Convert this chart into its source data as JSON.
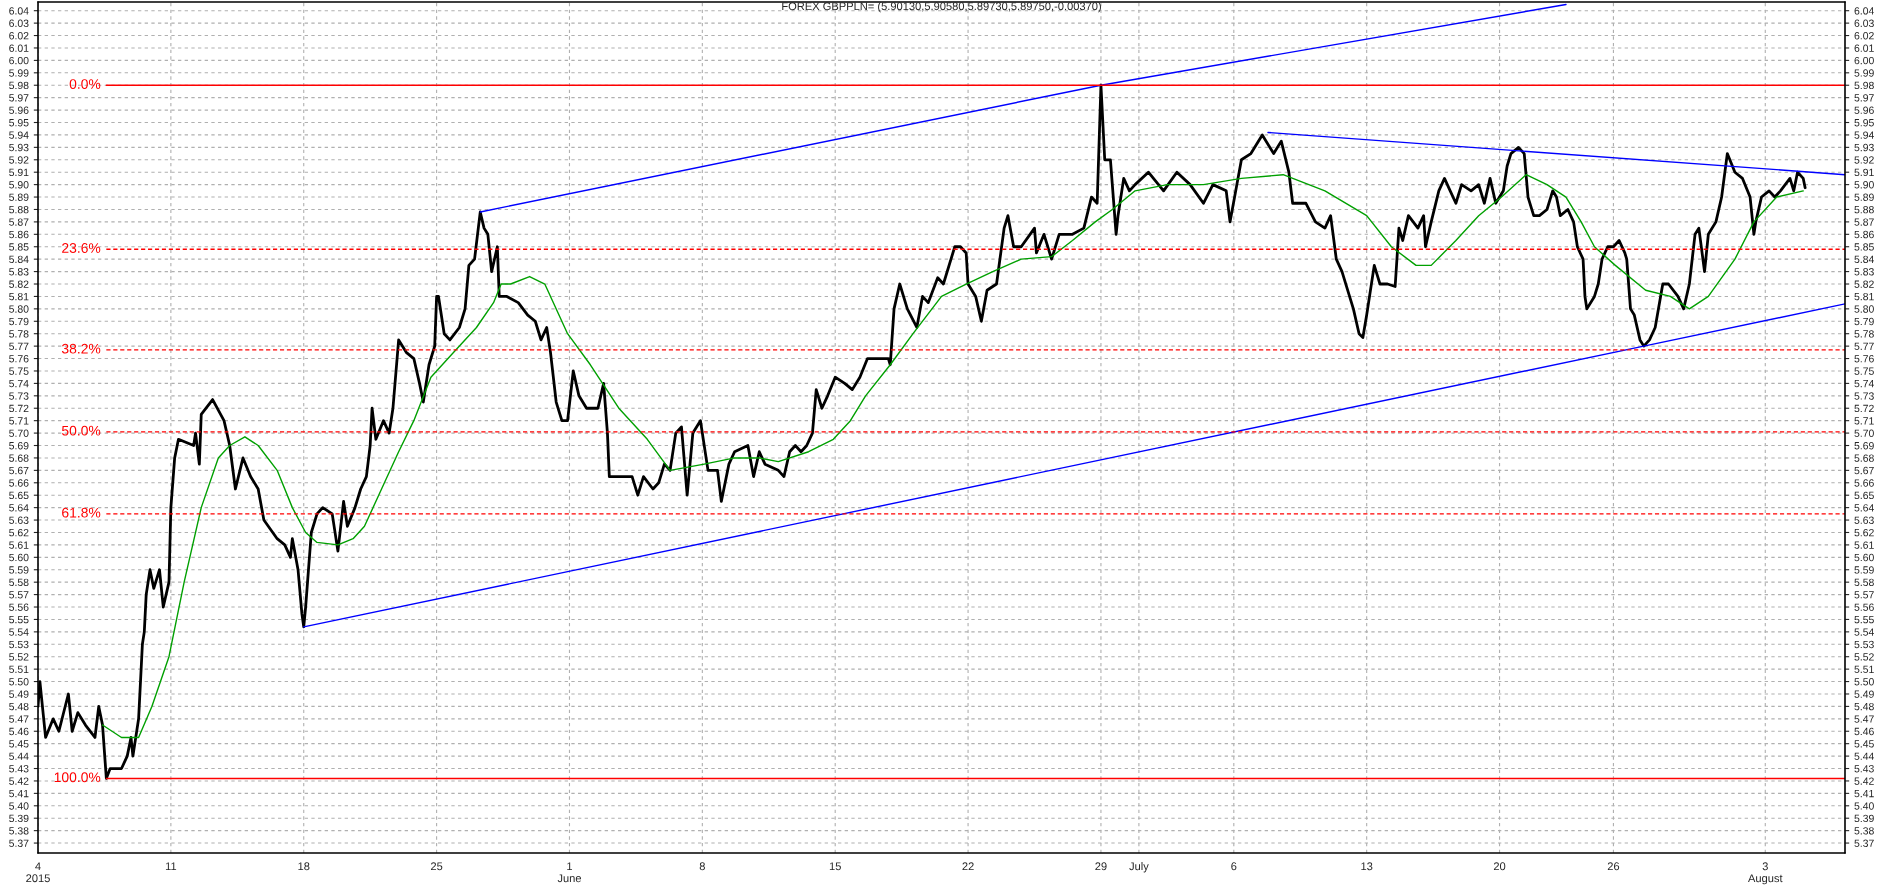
{
  "chart_data": {
    "type": "line",
    "title": "FOREX GBPPLN= (5.90130,5.90580,5.89730,5.89750,-0.00370)",
    "xlim": [
      "2015-05-04T00:00",
      "2015-08-07T04:48"
    ],
    "ylim": [
      5.362,
      6.047
    ],
    "y2lim": [
      5.362,
      6.047
    ],
    "xticks": [
      {
        "value": "2015-05-04",
        "label": "4\n2015"
      },
      {
        "value": "2015-05-11",
        "label": "11"
      },
      {
        "value": "2015-05-18",
        "label": "18"
      },
      {
        "value": "2015-05-25",
        "label": "25"
      },
      {
        "value": "2015-06-01",
        "label": "1\nJune"
      },
      {
        "value": "2015-06-08",
        "label": "8"
      },
      {
        "value": "2015-06-15",
        "label": "15"
      },
      {
        "value": "2015-06-22",
        "label": "22"
      },
      {
        "value": "2015-06-29",
        "label": "29"
      },
      {
        "value": "2015-07-01",
        "label": "July"
      },
      {
        "value": "2015-07-06",
        "label": "6"
      },
      {
        "value": "2015-07-13",
        "label": "13"
      },
      {
        "value": "2015-07-20",
        "label": "20"
      },
      {
        "value": "2015-07-26",
        "label": "26"
      },
      {
        "value": "2015-08-03",
        "label": "3\nAugust"
      }
    ],
    "yticks": [
      5.37,
      5.38,
      5.39,
      {
        "value": 5.4,
        "label": "5.40"
      },
      5.41,
      5.42,
      5.43,
      5.44,
      5.45,
      5.46,
      5.47,
      5.48,
      5.49,
      {
        "value": 5.5,
        "label": "5.50"
      },
      5.51,
      5.52,
      5.53,
      5.54,
      5.55,
      5.56,
      5.57,
      5.58,
      5.59,
      {
        "value": 5.6,
        "label": "5.60"
      },
      5.61,
      5.62,
      5.63,
      5.64,
      5.65,
      5.66,
      5.67,
      5.68,
      5.69,
      {
        "value": 5.7,
        "label": "5.70"
      },
      5.71,
      5.72,
      5.73,
      5.74,
      5.75,
      5.76,
      5.77,
      5.78,
      5.79,
      {
        "value": 5.8,
        "label": "5.80"
      },
      5.81,
      5.82,
      5.83,
      5.84,
      5.85,
      5.86,
      5.87,
      5.88,
      5.89,
      {
        "value": 5.9,
        "label": "5.90"
      },
      5.91,
      5.92,
      5.93,
      5.94,
      5.95,
      5.96,
      5.97,
      5.98,
      5.99,
      {
        "value": 6.0,
        "label": "6.00"
      },
      6.01,
      6.02,
      6.03,
      6.04
    ],
    "y2ticks": [
      5.37,
      5.38,
      5.39,
      {
        "value": 5.4,
        "label": "5.40"
      },
      5.41,
      5.42,
      5.43,
      5.44,
      5.45,
      5.46,
      5.47,
      5.48,
      5.49,
      {
        "value": 5.5,
        "label": "5.50"
      },
      5.51,
      5.52,
      5.53,
      5.54,
      5.55,
      5.56,
      5.57,
      5.58,
      5.59,
      {
        "value": 5.6,
        "label": "5.60"
      },
      5.61,
      5.62,
      5.63,
      5.64,
      5.65,
      5.66,
      5.67,
      5.68,
      5.69,
      {
        "value": 5.7,
        "label": "5.70"
      },
      5.71,
      5.72,
      5.73,
      5.74,
      5.75,
      5.76,
      5.77,
      5.78,
      5.79,
      {
        "value": 5.8,
        "label": "5.80"
      },
      5.81,
      5.82,
      5.83,
      5.84,
      5.85,
      5.86,
      5.87,
      5.88,
      5.89,
      {
        "value": 5.9,
        "label": "5.90"
      },
      5.91,
      5.92,
      5.93,
      5.94,
      5.95,
      5.96,
      5.97,
      5.98,
      5.99,
      {
        "value": 6.0,
        "label": "6.00"
      },
      6.01,
      6.02,
      6.03,
      6.04
    ],
    "grid": true,
    "line_style": "solid",
    "series": [
      {
        "color": "#000000",
        "x": [
          "2015-05-04T00:00",
          "2015-05-04T02:24",
          "2015-05-04T09:36",
          "2015-05-04T19:12",
          "2015-05-05T02:24",
          "2015-05-05T14:24",
          "2015-05-05T19:12",
          "2015-05-06T02:24",
          "2015-05-06T12:00",
          "2015-05-07T00:00",
          "2015-05-07T04:48",
          "2015-05-07T09:36",
          "2015-05-07T14:24",
          "2015-05-07T19:12",
          "2015-05-08T09:36",
          "2015-05-08T16:48",
          "2015-05-08T21:36",
          "2015-05-09T00:00",
          "2015-05-09T07:12",
          "2015-05-09T12:00",
          "2015-05-09T14:24",
          "2015-05-09T16:48",
          "2015-05-09T21:36",
          "2015-05-10T02:24",
          "2015-05-10T09:36",
          "2015-05-10T14:24",
          "2015-05-10T21:36",
          "2015-05-11T00:00",
          "2015-05-11T04:48",
          "2015-05-11T09:36",
          "2015-05-12T04:48",
          "2015-05-12T07:12",
          "2015-05-12T12:00",
          "2015-05-12T14:24",
          "2015-05-13T04:48",
          "2015-05-13T19:12",
          "2015-05-14T02:24",
          "2015-05-14T09:36",
          "2015-05-14T19:12",
          "2015-05-15T04:48",
          "2015-05-15T14:24",
          "2015-05-15T21:36",
          "2015-05-16T14:24",
          "2015-05-17T00:00",
          "2015-05-17T07:12",
          "2015-05-17T09:36",
          "2015-05-17T16:48",
          "2015-05-17T21:36",
          "2015-05-18T00:00",
          "2015-05-18T02:24",
          "2015-05-18T09:36",
          "2015-05-18T16:48",
          "2015-05-19T00:00",
          "2015-05-19T12:00",
          "2015-05-19T19:12",
          "2015-05-20T02:24",
          "2015-05-20T07:12",
          "2015-05-20T16:48",
          "2015-05-21T00:00",
          "2015-05-21T07:12",
          "2015-05-21T12:00",
          "2015-05-21T14:24",
          "2015-05-21T19:12",
          "2015-05-22T04:48",
          "2015-05-22T12:00",
          "2015-05-22T16:48",
          "2015-05-23T00:00",
          "2015-05-23T09:36",
          "2015-05-23T19:12",
          "2015-05-24T02:24",
          "2015-05-24T07:12",
          "2015-05-24T14:24",
          "2015-05-24T21:36",
          "2015-05-25T00:00",
          "2015-05-25T02:24",
          "2015-05-25T09:36",
          "2015-05-25T16:48",
          "2015-05-26T04:48",
          "2015-05-26T12:00",
          "2015-05-26T16:48",
          "2015-05-27T00:00",
          "2015-05-27T07:12",
          "2015-05-27T12:00",
          "2015-05-27T16:48",
          "2015-05-27T21:36",
          "2015-05-28T04:48",
          "2015-05-28T07:12",
          "2015-05-28T16:48",
          "2015-05-29T07:12",
          "2015-05-29T19:12",
          "2015-05-30T04:48",
          "2015-05-30T12:00",
          "2015-05-30T19:12",
          "2015-05-31T00:00",
          "2015-05-31T07:12",
          "2015-05-31T14:24",
          "2015-05-31T21:36",
          "2015-06-01T04:48",
          "2015-06-01T12:00",
          "2015-06-01T21:36",
          "2015-06-02T12:00",
          "2015-06-02T19:12",
          "2015-06-03T00:00",
          "2015-06-03T02:24",
          "2015-06-03T14:24",
          "2015-06-04T07:12",
          "2015-06-04T14:24",
          "2015-06-04T21:36",
          "2015-06-05T09:36",
          "2015-06-05T16:48",
          "2015-06-06T00:00",
          "2015-06-06T07:12",
          "2015-06-06T14:24",
          "2015-06-06T21:36",
          "2015-06-07T04:48",
          "2015-06-07T12:00",
          "2015-06-07T21:36",
          "2015-06-08T07:12",
          "2015-06-08T19:12",
          "2015-06-09T00:00",
          "2015-06-09T09:36",
          "2015-06-09T16:48",
          "2015-06-10T09:36",
          "2015-06-10T16:48",
          "2015-06-11T00:00",
          "2015-06-11T07:12",
          "2015-06-12T00:00",
          "2015-06-12T07:12",
          "2015-06-12T14:24",
          "2015-06-12T21:36",
          "2015-06-13T04:48",
          "2015-06-13T12:00",
          "2015-06-13T19:12",
          "2015-06-14T00:00",
          "2015-06-14T07:12",
          "2015-06-14T14:24",
          "2015-06-15T00:00",
          "2015-06-15T12:00",
          "2015-06-15T21:36",
          "2015-06-16T07:12",
          "2015-06-16T16:48",
          "2015-06-17T19:12",
          "2015-06-17T21:36",
          "2015-06-18T02:24",
          "2015-06-18T09:36",
          "2015-06-18T19:12",
          "2015-06-19T07:12",
          "2015-06-19T14:24",
          "2015-06-19T21:36",
          "2015-06-20T09:36",
          "2015-06-20T16:48",
          "2015-06-21T07:12",
          "2015-06-21T14:24",
          "2015-06-21T21:36",
          "2015-06-22T00:00",
          "2015-06-22T09:36",
          "2015-06-22T16:48",
          "2015-06-23T00:00",
          "2015-06-23T12:00",
          "2015-06-23T21:36",
          "2015-06-24T02:24",
          "2015-06-24T09:36",
          "2015-06-24T19:12",
          "2015-06-25T12:00",
          "2015-06-25T14:24",
          "2015-06-26T00:00",
          "2015-06-26T09:36",
          "2015-06-26T19:12",
          "2015-06-27T12:00",
          "2015-06-28T02:24",
          "2015-06-28T12:00",
          "2015-06-28T19:12",
          "2015-06-29T00:00",
          "2015-06-29T04:48",
          "2015-06-29T12:00",
          "2015-06-29T19:12",
          "2015-06-29T21:36",
          "2015-06-30T04:48",
          "2015-06-30T12:00",
          "2015-06-30T19:12",
          "2015-07-01T12:00",
          "2015-07-02T07:12",
          "2015-07-03T00:00",
          "2015-07-03T16:48",
          "2015-07-04T09:36",
          "2015-07-04T21:36",
          "2015-07-05T14:24",
          "2015-07-05T19:12",
          "2015-07-06T09:36",
          "2015-07-06T21:36",
          "2015-07-07T12:00",
          "2015-07-08T02:24",
          "2015-07-08T12:00",
          "2015-07-08T21:36",
          "2015-07-09T02:24",
          "2015-07-09T19:12",
          "2015-07-10T07:12",
          "2015-07-10T19:12",
          "2015-07-11T02:24",
          "2015-07-11T09:36",
          "2015-07-11T16:48",
          "2015-07-12T07:12",
          "2015-07-12T14:24",
          "2015-07-12T19:12",
          "2015-07-13T00:00",
          "2015-07-13T09:36",
          "2015-07-13T16:48",
          "2015-07-14T02:24",
          "2015-07-14T12:00",
          "2015-07-14T16:48",
          "2015-07-14T21:36",
          "2015-07-15T04:48",
          "2015-07-15T16:48",
          "2015-07-16T00:00",
          "2015-07-16T02:24",
          "2015-07-16T09:36",
          "2015-07-16T19:12",
          "2015-07-17T02:24",
          "2015-07-17T09:36",
          "2015-07-17T16:48",
          "2015-07-18T00:00",
          "2015-07-18T12:00",
          "2015-07-18T21:36",
          "2015-07-19T04:48",
          "2015-07-19T12:00",
          "2015-07-19T19:12",
          "2015-07-20T04:48",
          "2015-07-20T09:36",
          "2015-07-20T14:24",
          "2015-07-21T00:00",
          "2015-07-21T07:12",
          "2015-07-21T12:00",
          "2015-07-21T19:12",
          "2015-07-22T02:24",
          "2015-07-22T12:00",
          "2015-07-22T19:12",
          "2015-07-23T00:00",
          "2015-07-23T04:48",
          "2015-07-23T14:24",
          "2015-07-23T21:36",
          "2015-07-24T02:24",
          "2015-07-24T09:36",
          "2015-07-24T12:00",
          "2015-07-24T14:24",
          "2015-07-25T00:00",
          "2015-07-25T04:48",
          "2015-07-25T09:36",
          "2015-07-25T16:48",
          "2015-07-26T00:00",
          "2015-07-26T07:12",
          "2015-07-26T14:24",
          "2015-07-26T16:48",
          "2015-07-26T21:36",
          "2015-07-27T02:24",
          "2015-07-27T09:36",
          "2015-07-27T14:24",
          "2015-07-27T21:36",
          "2015-07-28T04:48",
          "2015-07-28T14:24",
          "2015-07-28T21:36",
          "2015-07-29T09:36",
          "2015-07-29T16:48",
          "2015-07-30T00:00",
          "2015-07-30T07:12",
          "2015-07-30T12:00",
          "2015-07-30T19:12",
          "2015-07-31T00:00",
          "2015-07-31T09:36",
          "2015-07-31T16:48",
          "2015-08-01T00:00",
          "2015-08-01T09:36",
          "2015-08-01T19:12",
          "2015-08-02T04:48",
          "2015-08-02T09:36",
          "2015-08-02T12:00",
          "2015-08-02T19:12",
          "2015-08-03T04:48",
          "2015-08-03T12:00",
          "2015-08-03T19:12",
          "2015-08-04T07:12",
          "2015-08-04T12:00",
          "2015-08-04T16:48",
          "2015-08-05T00:00",
          "2015-08-05T02:24"
        ],
        "values": [
          5.48,
          5.5,
          5.455,
          5.47,
          5.46,
          5.49,
          5.46,
          5.475,
          5.465,
          5.455,
          5.48,
          5.465,
          5.422,
          5.43,
          5.43,
          5.44,
          5.455,
          5.44,
          5.47,
          5.53,
          5.54,
          5.57,
          5.59,
          5.575,
          5.59,
          5.56,
          5.58,
          5.64,
          5.68,
          5.695,
          5.69,
          5.7,
          5.675,
          5.715,
          5.727,
          5.71,
          5.69,
          5.655,
          5.68,
          5.665,
          5.655,
          5.63,
          5.615,
          5.61,
          5.6,
          5.615,
          5.59,
          5.555,
          5.544,
          5.56,
          5.62,
          5.635,
          5.64,
          5.635,
          5.605,
          5.645,
          5.625,
          5.64,
          5.655,
          5.665,
          5.69,
          5.72,
          5.695,
          5.71,
          5.7,
          5.72,
          5.775,
          5.765,
          5.76,
          5.74,
          5.725,
          5.755,
          5.77,
          5.81,
          5.81,
          5.78,
          5.775,
          5.785,
          5.8,
          5.835,
          5.84,
          5.878,
          5.865,
          5.86,
          5.83,
          5.85,
          5.81,
          5.81,
          5.805,
          5.795,
          5.79,
          5.775,
          5.785,
          5.765,
          5.725,
          5.71,
          5.71,
          5.75,
          5.73,
          5.72,
          5.72,
          5.74,
          5.7,
          5.665,
          5.665,
          5.665,
          5.65,
          5.665,
          5.655,
          5.66,
          5.675,
          5.67,
          5.7,
          5.705,
          5.65,
          5.7,
          5.71,
          5.67,
          5.67,
          5.645,
          5.675,
          5.685,
          5.69,
          5.665,
          5.685,
          5.675,
          5.67,
          5.665,
          5.685,
          5.69,
          5.685,
          5.69,
          5.7,
          5.735,
          5.72,
          5.73,
          5.745,
          5.74,
          5.735,
          5.745,
          5.76,
          5.76,
          5.755,
          5.8,
          5.82,
          5.8,
          5.785,
          5.81,
          5.805,
          5.825,
          5.82,
          5.85,
          5.85,
          5.845,
          5.82,
          5.81,
          5.79,
          5.815,
          5.82,
          5.865,
          5.875,
          5.85,
          5.85,
          5.865,
          5.845,
          5.86,
          5.84,
          5.86,
          5.86,
          5.865,
          5.89,
          5.885,
          5.98,
          5.92,
          5.92,
          5.86,
          5.875,
          5.905,
          5.895,
          5.9,
          5.91,
          5.895,
          5.91,
          5.9,
          5.885,
          5.9,
          5.895,
          5.87,
          5.92,
          5.925,
          5.94,
          5.925,
          5.935,
          5.91,
          5.885,
          5.885,
          5.87,
          5.865,
          5.875,
          5.84,
          5.83,
          5.8,
          5.78,
          5.777,
          5.795,
          5.835,
          5.82,
          5.82,
          5.818,
          5.865,
          5.855,
          5.875,
          5.865,
          5.875,
          5.85,
          5.87,
          5.895,
          5.905,
          5.895,
          5.885,
          5.9,
          5.895,
          5.9,
          5.885,
          5.905,
          5.885,
          5.895,
          5.915,
          5.925,
          5.93,
          5.925,
          5.89,
          5.875,
          5.875,
          5.88,
          5.895,
          5.89,
          5.875,
          5.88,
          5.87,
          5.85,
          5.84,
          5.81,
          5.8,
          5.81,
          5.82,
          5.84,
          5.85,
          5.85,
          5.855,
          5.845,
          5.84,
          5.8,
          5.795,
          5.775,
          5.77,
          5.775,
          5.785,
          5.82,
          5.82,
          5.81,
          5.8,
          5.82,
          5.86,
          5.865,
          5.83,
          5.86,
          5.87,
          5.89,
          5.925,
          5.91,
          5.905,
          5.89,
          5.86,
          5.87,
          5.89,
          5.895,
          5.89,
          5.895,
          5.905,
          5.895,
          5.91,
          5.905,
          5.8975
        ]
      },
      {
        "color": "#00a000",
        "x": [
          "2015-05-07T09:36",
          "2015-05-08T09:36",
          "2015-05-09T07:12",
          "2015-05-10T00:00",
          "2015-05-10T21:36",
          "2015-05-11T16:48",
          "2015-05-12T14:24",
          "2015-05-13T12:00",
          "2015-05-14T02:24",
          "2015-05-14T21:36",
          "2015-05-15T14:24",
          "2015-05-16T14:24",
          "2015-05-17T09:36",
          "2015-05-18T02:24",
          "2015-05-18T16:48",
          "2015-05-19T19:12",
          "2015-05-20T14:24",
          "2015-05-21T04:48",
          "2015-05-22T02:24",
          "2015-05-23T00:00",
          "2015-05-23T19:12",
          "2015-05-24T16:48",
          "2015-05-25T21:36",
          "2015-05-27T02:24",
          "2015-05-28T00:00",
          "2015-05-28T09:36",
          "2015-05-28T21:36",
          "2015-05-29T21:36",
          "2015-05-30T16:48",
          "2015-05-31T21:36",
          "2015-06-02T02:24",
          "2015-06-03T14:24",
          "2015-06-05T02:24",
          "2015-06-06T07:12",
          "2015-06-08T02:24",
          "2015-06-09T16:48",
          "2015-06-11T00:00",
          "2015-06-12T00:00",
          "2015-06-13T14:24",
          "2015-06-14T21:36",
          "2015-06-15T19:12",
          "2015-06-16T14:24",
          "2015-06-17T21:36",
          "2015-06-19T02:24",
          "2015-06-20T14:24",
          "2015-06-21T21:36",
          "2015-06-23T07:12",
          "2015-06-24T19:12",
          "2015-06-26T09:36",
          "2015-06-27T12:00",
          "2015-06-28T16:48",
          "2015-06-29T14:24",
          "2015-06-30T19:12",
          "2015-07-02T12:00",
          "2015-07-04T09:36",
          "2015-07-06T09:36",
          "2015-07-08T14:24",
          "2015-07-10T19:12",
          "2015-07-13T00:00",
          "2015-07-14T07:12",
          "2015-07-15T14:24",
          "2015-07-16T09:36",
          "2015-07-17T16:48",
          "2015-07-18T21:36",
          "2015-07-20T02:24",
          "2015-07-21T09:36",
          "2015-07-22T12:00",
          "2015-07-23T12:00",
          "2015-07-24T07:12",
          "2015-07-25T00:00",
          "2015-07-26T02:24",
          "2015-07-27T16:48",
          "2015-07-29T00:00",
          "2015-07-30T00:00",
          "2015-07-31T00:00",
          "2015-08-01T09:36",
          "2015-08-02T09:36",
          "2015-08-03T14:24",
          "2015-08-05T00:00"
        ],
        "values": [
          5.465,
          5.455,
          5.455,
          5.48,
          5.52,
          5.58,
          5.64,
          5.68,
          5.69,
          5.697,
          5.69,
          5.67,
          5.64,
          5.62,
          5.612,
          5.61,
          5.615,
          5.625,
          5.655,
          5.685,
          5.71,
          5.745,
          5.765,
          5.785,
          5.805,
          5.82,
          5.82,
          5.826,
          5.82,
          5.78,
          5.755,
          5.72,
          5.695,
          5.67,
          5.675,
          5.68,
          5.68,
          5.677,
          5.685,
          5.695,
          5.71,
          5.73,
          5.755,
          5.78,
          5.81,
          5.82,
          5.83,
          5.84,
          5.842,
          5.855,
          5.87,
          5.88,
          5.895,
          5.9,
          5.9,
          5.905,
          5.908,
          5.895,
          5.875,
          5.85,
          5.835,
          5.835,
          5.855,
          5.875,
          5.89,
          5.908,
          5.9,
          5.89,
          5.87,
          5.85,
          5.835,
          5.815,
          5.81,
          5.8,
          5.81,
          5.84,
          5.87,
          5.89,
          5.895
        ]
      },
      {
        "color": "#0000ff",
        "x": [
          "2015-05-27T07:12",
          "2015-06-29T00:00",
          "2015-07-23T12:00"
        ],
        "values": [
          5.878,
          5.98,
          6.045
        ]
      },
      {
        "color": "#0000ff",
        "x": [
          "2015-05-18T00:00",
          "2015-07-27T14:24",
          "2015-08-07T04:48"
        ],
        "values": [
          5.544,
          5.77,
          5.804
        ]
      },
      {
        "color": "#0000ff",
        "x": [
          "2015-07-07T19:12",
          "2015-08-07T04:48"
        ],
        "values": [
          5.942,
          5.908
        ]
      },
      {
        "name": "0.0%",
        "color": "#ff0000",
        "line_style": "solid",
        "x": [
          "2015-05-07T14:24",
          "2015-08-07T04:48"
        ],
        "values": [
          5.98,
          5.98
        ]
      },
      {
        "name": "23.6%",
        "color": "#ff0000",
        "line_style": "dashed",
        "x": [
          "2015-05-07T14:24",
          "2015-08-07T04:48"
        ],
        "values": [
          5.848,
          5.848
        ]
      },
      {
        "name": "38.2%",
        "color": "#ff0000",
        "line_style": "dashed",
        "x": [
          "2015-05-07T14:24",
          "2015-08-07T04:48"
        ],
        "values": [
          5.767,
          5.767
        ]
      },
      {
        "name": "50.0%",
        "color": "#ff0000",
        "line_style": "dashed",
        "x": [
          "2015-05-07T14:24",
          "2015-08-07T04:48"
        ],
        "values": [
          5.701,
          5.701
        ]
      },
      {
        "name": "61.8%",
        "color": "#ff0000",
        "line_style": "dashed",
        "x": [
          "2015-05-07T14:24",
          "2015-08-07T04:48"
        ],
        "values": [
          5.635,
          5.635
        ]
      },
      {
        "name": "100.0%",
        "color": "#ff0000",
        "line_style": "solid",
        "x": [
          "2015-05-07T14:24",
          "2015-08-07T04:48"
        ],
        "values": [
          5.422,
          5.422
        ]
      }
    ]
  }
}
